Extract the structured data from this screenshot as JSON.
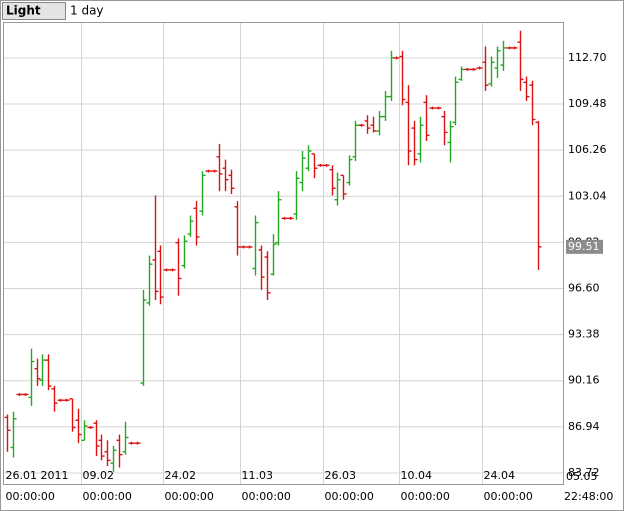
{
  "header": {
    "instrument": "Light",
    "period": "1 day"
  },
  "chart_data": {
    "type": "ohlc",
    "categories": [
      "26.01 2011",
      null,
      null,
      null,
      null,
      null,
      null,
      null,
      null,
      null,
      null,
      null,
      null,
      "09.02",
      null,
      null,
      null,
      null,
      null,
      null,
      null,
      null,
      null,
      null,
      null,
      null,
      null,
      "24.02",
      null,
      null,
      null,
      null,
      null,
      null,
      null,
      null,
      null,
      null,
      null,
      null,
      "11.03",
      null,
      null,
      null,
      null,
      null,
      null,
      null,
      null,
      null,
      null,
      null,
      null,
      null,
      "26.03",
      null,
      null,
      null,
      null,
      null,
      null,
      null,
      null,
      null,
      null,
      null,
      null,
      "10.04",
      null,
      null,
      null,
      null,
      null,
      null,
      null,
      null,
      null,
      null,
      null,
      null,
      null,
      "24.04",
      null,
      null,
      null,
      null,
      null,
      null,
      null,
      null,
      null
    ],
    "times": [
      "00:00:00",
      null,
      null,
      null,
      null,
      null,
      null,
      null,
      null,
      null,
      null,
      null,
      null,
      "00:00:00",
      null,
      null,
      null,
      null,
      null,
      null,
      null,
      null,
      null,
      null,
      null,
      null,
      null,
      "00:00:00",
      null,
      null,
      null,
      null,
      null,
      null,
      null,
      null,
      null,
      null,
      null,
      null,
      "00:00:00",
      null,
      null,
      null,
      null,
      null,
      null,
      null,
      null,
      null,
      null,
      null,
      null,
      null,
      "00:00:00",
      null,
      null,
      null,
      null,
      null,
      null,
      null,
      null,
      null,
      null,
      null,
      null,
      "00:00:00",
      null,
      null,
      null,
      null,
      null,
      null,
      null,
      null,
      null,
      null,
      null,
      null,
      null,
      "00:00:00",
      null,
      null,
      null,
      null,
      null,
      null,
      null,
      null,
      null
    ],
    "open": [
      87.6,
      85.5,
      89.2,
      89.2,
      89.0,
      91.0,
      90.2,
      91.6,
      89.6,
      88.8,
      88.8,
      88.9,
      87.4,
      86.0,
      86.9,
      87.2,
      86.0,
      85.2,
      84.4,
      86.0,
      85.2,
      85.8,
      85.8,
      90.0,
      95.6,
      98.6,
      99.2,
      97.9,
      97.9,
      99.8,
      98.2,
      100.4,
      102.2,
      102.0,
      104.8,
      104.8,
      105.8,
      105.0,
      104.5,
      102.3,
      99.5,
      99.5,
      98.0,
      99.3,
      98.8,
      97.6,
      99.8,
      101.5,
      101.5,
      101.8,
      104.0,
      105.0,
      106.0,
      105.2,
      105.2,
      104.9,
      102.8,
      104.5,
      104.0,
      105.8,
      108.0,
      108.3,
      108.0,
      107.6,
      108.6,
      110.0,
      112.7,
      112.8,
      109.6,
      107.8,
      106.0,
      109.6,
      109.2,
      109.2,
      108.6,
      106.8,
      108.2,
      111.2,
      111.9,
      111.9,
      112.0,
      112.4,
      110.9,
      112.0,
      112.2,
      113.4,
      113.4,
      113.8,
      111.0,
      110.8,
      108.2
    ],
    "high": [
      87.8,
      88.0,
      89.3,
      89.3,
      92.4,
      91.7,
      92.0,
      92.0,
      89.8,
      88.9,
      88.9,
      88.9,
      88.2,
      87.4,
      87.0,
      87.4,
      86.4,
      86.0,
      85.6,
      86.4,
      87.3,
      85.9,
      85.9,
      96.5,
      98.9,
      103.1,
      99.6,
      98.0,
      98.0,
      100.1,
      100.3,
      101.7,
      102.7,
      104.8,
      104.9,
      104.9,
      106.7,
      105.6,
      104.9,
      102.7,
      99.6,
      99.6,
      101.7,
      99.6,
      99.2,
      100.4,
      103.4,
      101.6,
      101.6,
      104.8,
      106.2,
      106.6,
      106.0,
      105.3,
      105.3,
      105.2,
      104.7,
      104.5,
      105.9,
      108.3,
      108.1,
      108.7,
      108.6,
      109.0,
      110.4,
      113.2,
      112.8,
      113.2,
      110.8,
      108.3,
      108.6,
      110.1,
      109.3,
      109.3,
      109.0,
      108.3,
      111.4,
      112.1,
      112.0,
      112.0,
      112.1,
      113.5,
      112.8,
      113.5,
      113.9,
      113.5,
      113.5,
      114.6,
      111.4,
      111.1,
      108.3
    ],
    "low": [
      85.2,
      84.8,
      89.1,
      89.1,
      88.4,
      89.8,
      89.8,
      89.5,
      88.0,
      88.7,
      88.7,
      86.6,
      85.8,
      86.0,
      86.8,
      84.9,
      84.6,
      84.2,
      83.8,
      84.1,
      85.0,
      85.7,
      85.7,
      89.8,
      95.4,
      95.8,
      95.5,
      97.8,
      97.8,
      96.1,
      98.0,
      100.2,
      99.6,
      101.7,
      104.7,
      104.7,
      103.4,
      103.4,
      103.2,
      98.9,
      99.4,
      99.4,
      97.5,
      96.5,
      95.8,
      97.5,
      99.6,
      101.4,
      101.4,
      101.4,
      103.4,
      104.8,
      104.3,
      105.1,
      105.1,
      103.1,
      102.4,
      102.8,
      103.8,
      105.5,
      107.9,
      107.4,
      107.5,
      107.3,
      108.3,
      109.7,
      112.6,
      109.4,
      105.2,
      105.2,
      105.4,
      106.9,
      109.1,
      109.1,
      106.6,
      105.4,
      108.0,
      111.1,
      111.8,
      111.8,
      111.9,
      110.4,
      110.7,
      111.3,
      111.8,
      113.3,
      113.3,
      110.4,
      109.7,
      108.0,
      97.9
    ],
    "close": [
      86.7,
      87.5,
      89.2,
      89.2,
      91.5,
      90.3,
      91.6,
      89.8,
      88.6,
      88.8,
      88.8,
      86.9,
      86.4,
      87.0,
      86.9,
      85.6,
      84.9,
      84.6,
      85.3,
      85.0,
      86.2,
      85.8,
      85.8,
      95.8,
      98.3,
      96.4,
      96.0,
      97.9,
      97.9,
      97.3,
      99.9,
      101.3,
      100.2,
      104.5,
      104.8,
      104.8,
      104.6,
      104.2,
      103.6,
      99.5,
      99.5,
      99.5,
      101.2,
      97.4,
      96.3,
      99.7,
      102.8,
      101.5,
      101.5,
      104.3,
      105.7,
      106.2,
      105.0,
      105.2,
      105.2,
      103.6,
      104.2,
      103.2,
      105.6,
      108.0,
      108.0,
      107.8,
      107.6,
      108.6,
      110.0,
      112.7,
      112.7,
      109.8,
      106.2,
      105.6,
      108.0,
      107.3,
      109.2,
      109.2,
      107.5,
      107.9,
      111.0,
      111.9,
      111.9,
      111.9,
      112.0,
      110.8,
      112.4,
      113.2,
      113.4,
      113.4,
      113.4,
      111.2,
      110.0,
      108.4,
      99.51
    ],
    "up_color": "#22aa22",
    "down_color": "#dd1111",
    "ylim": [
      82.95,
      115.14
    ],
    "yticks": [
      83.72,
      86.94,
      90.16,
      93.38,
      {
        "value": 96.6,
        "label": "96.60"
      },
      99.82,
      103.04,
      106.26,
      109.48,
      {
        "value": 112.7,
        "label": "112.70"
      }
    ],
    "grid": true,
    "last_price": 99.51,
    "cursor_date": "05.05",
    "cursor_time": "22:48:00"
  }
}
